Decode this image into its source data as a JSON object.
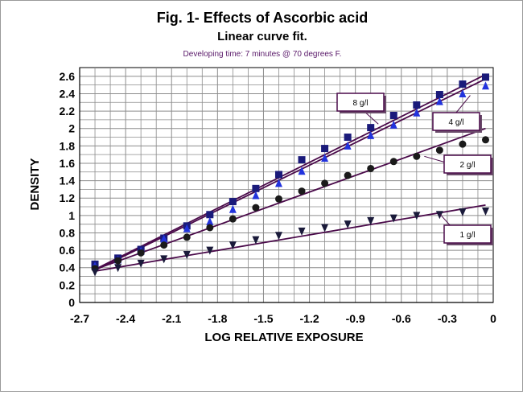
{
  "chart_data": {
    "type": "line",
    "title": "Fig. 1- Effects of Ascorbic acid",
    "subtitle": "Linear curve fit.",
    "note": "Developing time: 7 minutes @ 70 degrees F.",
    "xlabel": "LOG RELATIVE EXPOSURE",
    "ylabel": "DENSITY",
    "xlim": [
      -2.7,
      0
    ],
    "ylim": [
      0,
      2.7
    ],
    "xticks": [
      -2.7,
      -2.4,
      -2.1,
      -1.8,
      -1.5,
      -1.2,
      -0.9,
      -0.6,
      -0.3,
      0
    ],
    "xtick_labels": [
      "-2.7",
      "-2.4",
      "-2.1",
      "-1.8",
      "-1.5",
      "-1.2",
      "-0.9",
      "-0.6",
      "-0.3",
      "0"
    ],
    "yticks": [
      0,
      0.2,
      0.4,
      0.6,
      0.8,
      1,
      1.2,
      1.4,
      1.6,
      1.8,
      2,
      2.2,
      2.4,
      2.6
    ],
    "ytick_labels": [
      "0",
      "0.2",
      "0.4",
      "0.6",
      "0.8",
      "1",
      "1.2",
      "1.4",
      "1.6",
      "1.8",
      "2",
      "2.2",
      "2.4",
      "2.6"
    ],
    "grid": true,
    "x": [
      -2.6,
      -2.45,
      -2.3,
      -2.15,
      -2.0,
      -1.85,
      -1.7,
      -1.55,
      -1.4,
      -1.25,
      -1.1,
      -0.95,
      -0.8,
      -0.65,
      -0.5,
      -0.35,
      -0.2,
      -0.05
    ],
    "series": [
      {
        "name": "8 g/l",
        "marker": "square",
        "color": "#1a1a7a",
        "values": [
          0.44,
          0.51,
          0.61,
          0.74,
          0.88,
          1.01,
          1.16,
          1.31,
          1.47,
          1.64,
          1.77,
          1.9,
          2.01,
          2.15,
          2.27,
          2.39,
          2.51,
          2.59
        ],
        "fit": [
          [
            -2.6,
            0.38
          ],
          [
            -0.05,
            2.62
          ]
        ]
      },
      {
        "name": "4 g/l",
        "marker": "triangle-up",
        "color": "#2233dd",
        "values": [
          0.42,
          0.49,
          0.59,
          0.73,
          0.85,
          0.93,
          1.07,
          1.23,
          1.37,
          1.51,
          1.66,
          1.8,
          1.92,
          2.04,
          2.18,
          2.31,
          2.4,
          2.49
        ],
        "fit": [
          [
            -2.6,
            0.37
          ],
          [
            -0.05,
            2.57
          ]
        ]
      },
      {
        "name": "2 g/l",
        "marker": "circle",
        "color": "#1a1a1a",
        "values": [
          0.39,
          0.48,
          0.57,
          0.66,
          0.75,
          0.86,
          0.96,
          1.09,
          1.19,
          1.28,
          1.37,
          1.46,
          1.54,
          1.62,
          1.68,
          1.75,
          1.82,
          1.87
        ],
        "fit": [
          [
            -2.6,
            0.38
          ],
          [
            -0.05,
            2.0
          ]
        ]
      },
      {
        "name": "1 g/l",
        "marker": "triangle-down",
        "color": "#1a1a3a",
        "values": [
          0.35,
          0.4,
          0.45,
          0.5,
          0.55,
          0.6,
          0.66,
          0.72,
          0.77,
          0.82,
          0.86,
          0.9,
          0.94,
          0.97,
          1.0,
          1.01,
          1.04,
          1.05
        ],
        "fit": [
          [
            -2.6,
            0.36
          ],
          [
            -0.05,
            1.12
          ]
        ]
      }
    ]
  },
  "colors": {
    "fit_line": "#4a0a4a",
    "label_border": "#4a0a4a",
    "grid": "#8c8c8c",
    "note_text": "#5a1a6a"
  }
}
